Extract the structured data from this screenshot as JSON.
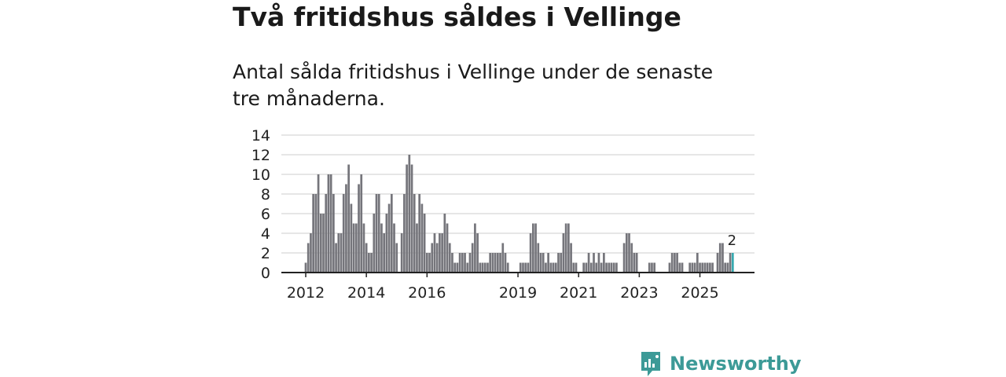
{
  "title": "Två fritidshus såldes i Vellinge",
  "subtitle": "Antal sålda fritidshus i Vellinge under de senaste tre månaderna.",
  "brand": "Newsworthy",
  "colors": {
    "bar": "#75757b",
    "highlight": "#36a9b0",
    "grid": "#dddddd",
    "axis": "#222222",
    "brand": "#3c9a97"
  },
  "chart_data": {
    "type": "bar",
    "title": "Två fritidshus såldes i Vellinge",
    "xlabel": "",
    "ylabel": "",
    "ylim": [
      0,
      14
    ],
    "yticks": [
      0,
      2,
      4,
      6,
      8,
      10,
      12,
      14
    ],
    "x_tick_labels": [
      {
        "label": "2012",
        "index": 0
      },
      {
        "label": "2014",
        "index": 24
      },
      {
        "label": "2016",
        "index": 48
      },
      {
        "label": "2019",
        "index": 84
      },
      {
        "label": "2021",
        "index": 108
      },
      {
        "label": "2023",
        "index": 132
      },
      {
        "label": "2025",
        "index": 156
      }
    ],
    "values": [
      1,
      3,
      4,
      8,
      8,
      10,
      6,
      6,
      8,
      10,
      10,
      8,
      3,
      4,
      4,
      8,
      9,
      11,
      7,
      5,
      5,
      9,
      10,
      5,
      3,
      2,
      2,
      6,
      8,
      8,
      5,
      4,
      6,
      7,
      8,
      5,
      3,
      0,
      4,
      8,
      11,
      12,
      11,
      8,
      5,
      8,
      7,
      6,
      2,
      2,
      3,
      4,
      3,
      4,
      4,
      6,
      5,
      3,
      2,
      1,
      1,
      2,
      2,
      2,
      1,
      2,
      3,
      5,
      4,
      1,
      1,
      1,
      1,
      2,
      2,
      2,
      2,
      2,
      3,
      2,
      1,
      0,
      0,
      0,
      0,
      1,
      1,
      1,
      1,
      4,
      5,
      5,
      3,
      2,
      2,
      1,
      2,
      1,
      1,
      1,
      2,
      2,
      4,
      5,
      5,
      3,
      1,
      1,
      0,
      0,
      1,
      1,
      2,
      1,
      2,
      1,
      2,
      1,
      2,
      1,
      1,
      1,
      1,
      1,
      0,
      0,
      3,
      4,
      4,
      3,
      2,
      2,
      0,
      0,
      0,
      0,
      1,
      1,
      1,
      0,
      0,
      0,
      0,
      0,
      1,
      2,
      2,
      2,
      1,
      1,
      0,
      0,
      1,
      1,
      1,
      2,
      1,
      1,
      1,
      1,
      1,
      1,
      0,
      2,
      3,
      3,
      1,
      1,
      2,
      2
    ],
    "highlight_index": 169,
    "highlight_label": "2"
  }
}
